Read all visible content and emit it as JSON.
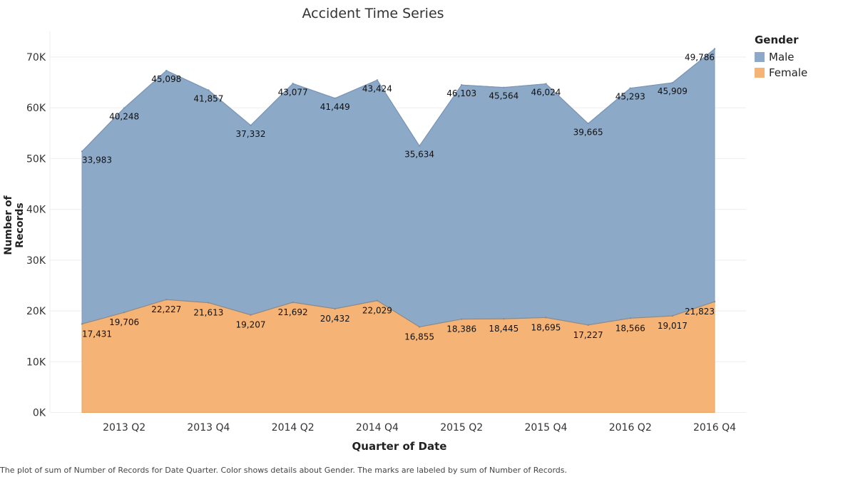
{
  "chart_data": {
    "type": "area",
    "stacked": true,
    "title": "Accident Time Series",
    "xlabel": "Quarter of Date",
    "ylabel": "Number of Records",
    "ylim": [
      0,
      70000
    ],
    "yticks": [
      0,
      10000,
      20000,
      30000,
      40000,
      50000,
      60000,
      70000
    ],
    "ytick_labels": [
      "0K",
      "10K",
      "20K",
      "30K",
      "40K",
      "50K",
      "60K",
      "70K"
    ],
    "grid": true,
    "legend_position": "top-right",
    "legend_title": "Gender",
    "categories": [
      "2013 Q1",
      "2013 Q2",
      "2013 Q3",
      "2013 Q4",
      "2014 Q1",
      "2014 Q2",
      "2014 Q3",
      "2014 Q4",
      "2015 Q1",
      "2015 Q2",
      "2015 Q3",
      "2015 Q4",
      "2016 Q1",
      "2016 Q2",
      "2016 Q3",
      "2016 Q4"
    ],
    "xtick_labels": [
      "2013 Q2",
      "2013 Q4",
      "2014 Q2",
      "2014 Q4",
      "2015 Q2",
      "2015 Q4",
      "2016 Q2",
      "2016 Q4"
    ],
    "series": [
      {
        "name": "Female",
        "color": "#f5b475",
        "values": [
          17431,
          19706,
          22227,
          21613,
          19207,
          21692,
          20432,
          22029,
          16855,
          18386,
          18445,
          18695,
          17227,
          18566,
          19017,
          21823
        ],
        "labels": [
          "17,431",
          "19,706",
          "22,227",
          "21,613",
          "19,207",
          "21,692",
          "20,432",
          "22,029",
          "16,855",
          "18,386",
          "18,445",
          "18,695",
          "17,227",
          "18,566",
          "19,017",
          "21,823"
        ]
      },
      {
        "name": "Male",
        "color": "#8da9c8",
        "values": [
          33983,
          40248,
          45098,
          41857,
          37332,
          43077,
          41449,
          43424,
          35634,
          46103,
          45564,
          46024,
          39665,
          45293,
          45909,
          49786
        ],
        "labels": [
          "33,983",
          "40,248",
          "45,098",
          "41,857",
          "37,332",
          "43,077",
          "41,449",
          "43,424",
          "35,634",
          "46,103",
          "45,564",
          "46,024",
          "39,665",
          "45,293",
          "45,909",
          "49,786"
        ]
      }
    ]
  },
  "legend": {
    "title": "Gender",
    "items": [
      {
        "label": "Male",
        "color": "#8da9c8"
      },
      {
        "label": "Female",
        "color": "#f5b475"
      }
    ]
  },
  "caption": "The plot of sum of Number of Records for Date Quarter.  Color shows details about Gender.  The marks are labeled by sum of Number of Records."
}
